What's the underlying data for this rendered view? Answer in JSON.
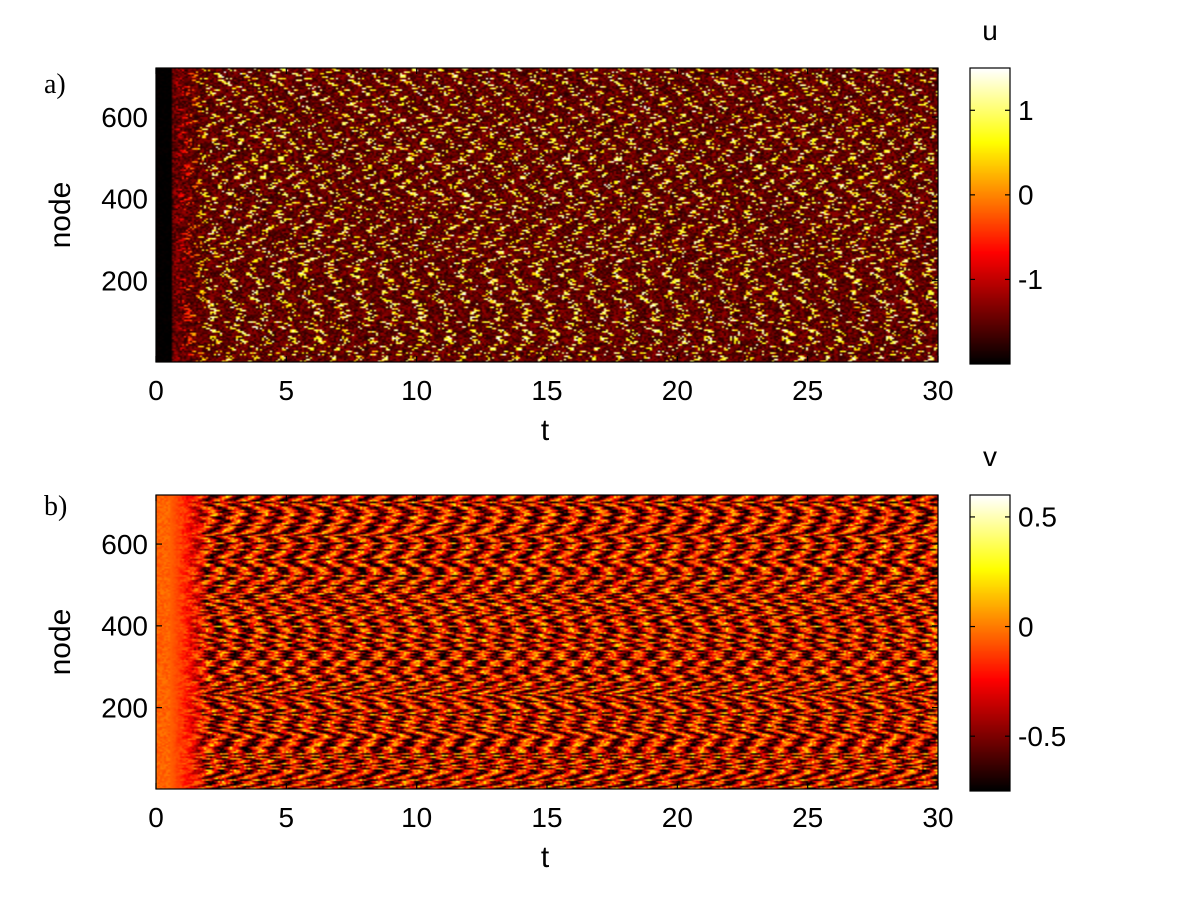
{
  "chart_data": [
    {
      "type": "heatmap",
      "panel_label": "a)",
      "xlabel": "t",
      "ylabel": "node",
      "xlim": [
        0,
        30
      ],
      "ylim": [
        1,
        720
      ],
      "xticks": [
        "0",
        "5",
        "10",
        "15",
        "20",
        "25",
        "30"
      ],
      "yticks": [
        "200",
        "400",
        "600"
      ],
      "colorbar": {
        "label": "u",
        "range": [
          -2.0,
          1.5
        ],
        "ticks": [
          "1",
          "0",
          "-1"
        ],
        "tick_values": [
          1,
          0,
          -1
        ],
        "colormap": "hot"
      },
      "pattern": {
        "initial_value": -2.0,
        "initial_band_t": [
          0,
          0.6
        ],
        "transition_t": [
          0.6,
          2.0
        ],
        "background_value": -1.5,
        "spike_value": 1.3,
        "oscillation_period": 1.0,
        "noisy": true
      }
    },
    {
      "type": "heatmap",
      "panel_label": "b)",
      "xlabel": "t",
      "ylabel": "node",
      "xlim": [
        0,
        30
      ],
      "ylim": [
        1,
        720
      ],
      "xticks": [
        "0",
        "5",
        "10",
        "15",
        "20",
        "25",
        "30"
      ],
      "yticks": [
        "200",
        "400",
        "600"
      ],
      "colorbar": {
        "label": "v",
        "range": [
          -0.75,
          0.6
        ],
        "ticks": [
          "0.5",
          "0",
          "-0.5"
        ],
        "tick_values": [
          0.5,
          0,
          -0.5
        ],
        "colormap": "hot"
      },
      "pattern": {
        "initial_value": -0.05,
        "initial_band_t": [
          0,
          0.5
        ],
        "transition_t": [
          0.5,
          2.0
        ],
        "background_value": -0.35,
        "amplitude": 0.45,
        "oscillation_period": 1.0,
        "noisy": true
      }
    }
  ]
}
